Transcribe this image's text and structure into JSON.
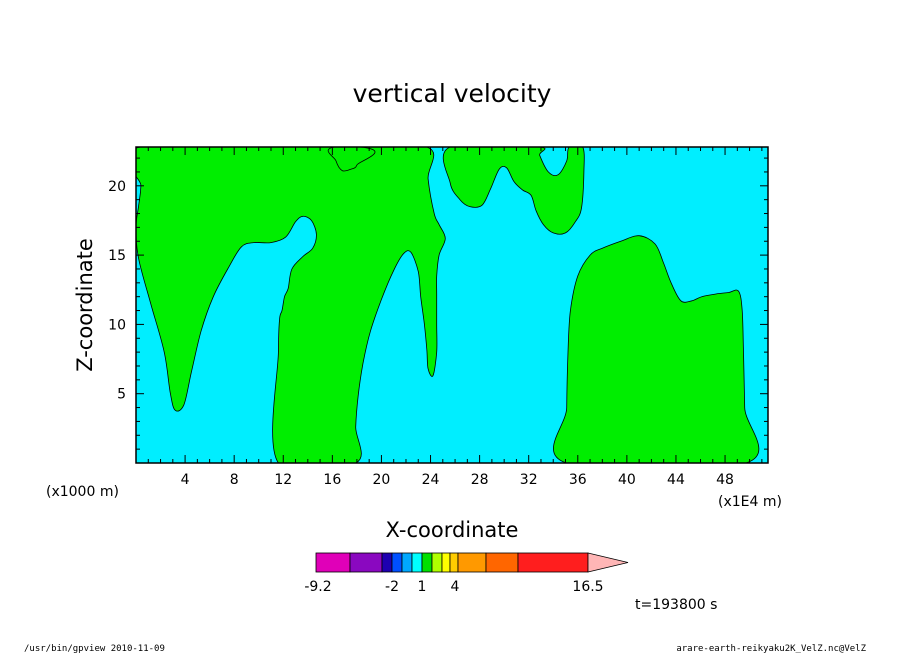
{
  "chart_data": {
    "type": "heatmap",
    "title": "vertical velocity",
    "xlabel": "X-coordinate",
    "ylabel": "Z-coordinate",
    "x_unit_left": "(x1000 m)",
    "x_unit_right": "(x1E4 m)",
    "xlim": [
      0,
      51.5
    ],
    "ylim": [
      0,
      22.8
    ],
    "x_ticks": [
      4,
      8,
      12,
      16,
      20,
      24,
      28,
      32,
      36,
      40,
      44,
      48
    ],
    "x_tick_labels": [
      "4",
      "8",
      "12",
      "16",
      "20",
      "24",
      "28",
      "32",
      "36",
      "40",
      "44",
      "48"
    ],
    "y_ticks": [
      5,
      10,
      15,
      20
    ],
    "y_tick_labels": [
      "5",
      "10",
      "15",
      "20"
    ],
    "colors": {
      "background_level": "#00eeff",
      "fill_level": "#00ee00"
    },
    "regions_fill_level": [
      [
        [
          0.4,
          22.8
        ],
        [
          0.4,
          20
        ],
        [
          0.2,
          18.5
        ],
        [
          0,
          17
        ],
        [
          0.2,
          14.8
        ],
        [
          1.2,
          11.5
        ],
        [
          2.3,
          8
        ],
        [
          2.8,
          5
        ],
        [
          3.2,
          3.8
        ],
        [
          3.9,
          4.2
        ],
        [
          4.5,
          6.5
        ],
        [
          5.3,
          9.5
        ],
        [
          6.3,
          12
        ],
        [
          7.6,
          14.2
        ],
        [
          8.6,
          15.6
        ],
        [
          9.6,
          15.9
        ],
        [
          11,
          15.9
        ],
        [
          12.2,
          16.3
        ],
        [
          13,
          17.4
        ],
        [
          13.6,
          17.8
        ],
        [
          14.3,
          17.5
        ],
        [
          14.7,
          16.5
        ],
        [
          14.4,
          15.5
        ],
        [
          13.6,
          14.9
        ],
        [
          12.7,
          14
        ],
        [
          12.4,
          12.6
        ],
        [
          12.1,
          12
        ],
        [
          11.9,
          11
        ],
        [
          11.7,
          10.4
        ],
        [
          11.6,
          8
        ],
        [
          11.6,
          0
        ],
        [
          17.9,
          0
        ],
        [
          17.9,
          2.6
        ],
        [
          18.1,
          4.8
        ],
        [
          18.5,
          7.2
        ],
        [
          19.1,
          9.5
        ],
        [
          20,
          11.8
        ],
        [
          21,
          13.9
        ],
        [
          21.8,
          15.1
        ],
        [
          22.4,
          15.2
        ],
        [
          23,
          13.8
        ],
        [
          23.2,
          12
        ],
        [
          23.5,
          10
        ],
        [
          23.7,
          8.2
        ],
        [
          23.8,
          6.8
        ],
        [
          24.2,
          6.3
        ],
        [
          24.5,
          8
        ],
        [
          24.5,
          10
        ],
        [
          24.5,
          12.2
        ],
        [
          24.5,
          13.5
        ],
        [
          24.7,
          15
        ],
        [
          25.2,
          16.2
        ],
        [
          24.7,
          17.2
        ],
        [
          24.3,
          18
        ],
        [
          23.8,
          20.5
        ],
        [
          23.7,
          22.8
        ],
        [
          16.2,
          22.8
        ],
        [
          16.3,
          21.8
        ],
        [
          16.8,
          21.1
        ],
        [
          17.5,
          21.2
        ],
        [
          18,
          21.5
        ],
        [
          18.2,
          22.8
        ]
      ],
      [
        [
          25.6,
          22.8
        ],
        [
          25.6,
          20.2
        ],
        [
          26.4,
          19
        ],
        [
          27.2,
          18.5
        ],
        [
          28.2,
          18.6
        ],
        [
          28.9,
          19.8
        ],
        [
          29.6,
          21.2
        ],
        [
          30.2,
          21.3
        ],
        [
          30.8,
          20.3
        ],
        [
          31.5,
          19.7
        ],
        [
          32.2,
          19.3
        ],
        [
          32.6,
          18.2
        ],
        [
          33.2,
          17.2
        ],
        [
          34,
          16.6
        ],
        [
          35,
          16.6
        ],
        [
          35.8,
          17.4
        ],
        [
          36.3,
          18.4
        ],
        [
          36.5,
          21
        ],
        [
          36.4,
          22.8
        ],
        [
          35.3,
          22.8
        ],
        [
          35.1,
          21.8
        ],
        [
          34.4,
          20.8
        ],
        [
          33.6,
          21
        ],
        [
          32.9,
          22.2
        ],
        [
          32.8,
          22.8
        ]
      ],
      [
        [
          35.1,
          0
        ],
        [
          35.1,
          4
        ],
        [
          35.2,
          8
        ],
        [
          35.4,
          11
        ],
        [
          36,
          13.5
        ],
        [
          37,
          15
        ],
        [
          38,
          15.5
        ],
        [
          39.5,
          16
        ],
        [
          41,
          16.4
        ],
        [
          42.3,
          15.8
        ],
        [
          43,
          14.4
        ],
        [
          43.6,
          13
        ],
        [
          44.4,
          11.7
        ],
        [
          45.3,
          11.7
        ],
        [
          46.1,
          12
        ],
        [
          47.3,
          12.2
        ],
        [
          48.3,
          12.3
        ],
        [
          49.1,
          12.4
        ],
        [
          49.4,
          11
        ],
        [
          49.5,
          8
        ],
        [
          49.6,
          4
        ],
        [
          49.7,
          0
        ]
      ]
    ],
    "colorbar": {
      "colors": [
        "#e000b8",
        "#8a08c0",
        "#1e00b0",
        "#0050ff",
        "#00a8ff",
        "#00ffff",
        "#00e000",
        "#b0ff00",
        "#ffff00",
        "#ffcc00",
        "#ff9900",
        "#ff6600",
        "#ff1e1e",
        "#ff8080",
        "#ffb6b6"
      ],
      "tick_labels": [
        "-9.2",
        "-2",
        "1",
        "4",
        "16.5"
      ]
    },
    "time_label": "t=193800 s"
  },
  "footer": {
    "left": "/usr/bin/gpview   2010-11-09",
    "right": "arare-earth-reikyaku2K_VelZ.nc@VelZ"
  }
}
